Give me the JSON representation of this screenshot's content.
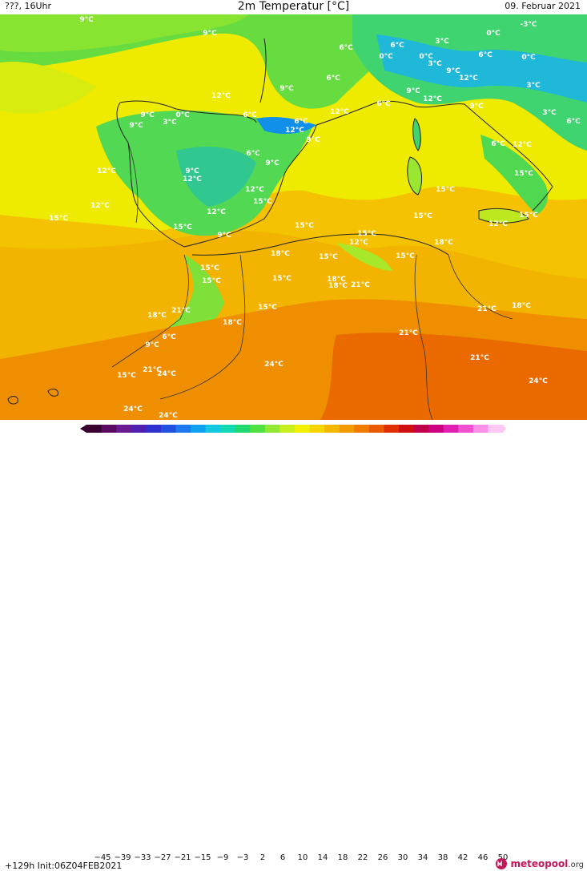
{
  "header": {
    "left": "???, 16Uhr",
    "title": "2m Temperatur [°C]",
    "right": "09. Februar 2021"
  },
  "footer": {
    "init": "+129h Init:06Z04FEB2021",
    "logo_main": "meteopool",
    "logo_suffix": ".org"
  },
  "colorbar": {
    "ticks": [
      "−45",
      "−39",
      "−33",
      "−27",
      "−21",
      "−15",
      "−9",
      "−3",
      "2",
      "6",
      "10",
      "14",
      "18",
      "22",
      "26",
      "30",
      "34",
      "38",
      "42",
      "46",
      "50"
    ],
    "colors": [
      "#3a0030",
      "#5a0a60",
      "#6a1a90",
      "#5020b0",
      "#3030d0",
      "#2050e0",
      "#1e78f0",
      "#10a0f0",
      "#10c8e0",
      "#10d8b0",
      "#20d870",
      "#50e040",
      "#90e830",
      "#c8ee20",
      "#f0f000",
      "#f6d400",
      "#f4b800",
      "#f29a00",
      "#ef7c00",
      "#ea5a00",
      "#e03000",
      "#d01010",
      "#c0004a",
      "#cc0080",
      "#e020b0",
      "#f050d0",
      "#fa90e8",
      "#ffc8f4"
    ]
  },
  "temperature_labels": [
    {
      "text": "9°C"
    },
    {
      "text": "9°C"
    },
    {
      "text": "6°C"
    },
    {
      "text": "3°C"
    },
    {
      "text": "0°C"
    },
    {
      "text": "-3°C"
    },
    {
      "text": "6°C"
    },
    {
      "text": "0°C"
    },
    {
      "text": "0°C"
    },
    {
      "text": "3°C"
    },
    {
      "text": "6°C"
    },
    {
      "text": "0°C"
    },
    {
      "text": "6°C"
    },
    {
      "text": "9°C"
    },
    {
      "text": "12°C"
    },
    {
      "text": "9°C"
    },
    {
      "text": "12°C"
    },
    {
      "text": "3°C"
    },
    {
      "text": "12°C"
    },
    {
      "text": "6°C"
    },
    {
      "text": "9°C"
    },
    {
      "text": "9°C"
    },
    {
      "text": "3°C"
    },
    {
      "text": "6°C"
    },
    {
      "text": "9°C"
    },
    {
      "text": "3°C"
    },
    {
      "text": "0°C"
    },
    {
      "text": "12°C"
    },
    {
      "text": "6°C"
    },
    {
      "text": "9°C"
    },
    {
      "text": "6°C"
    },
    {
      "text": "12°C"
    },
    {
      "text": "9°C"
    },
    {
      "text": "6°C"
    },
    {
      "text": "12°C"
    },
    {
      "text": "6°C"
    },
    {
      "text": "9°C"
    },
    {
      "text": "12°C"
    },
    {
      "text": "9°C"
    },
    {
      "text": "12°C"
    },
    {
      "text": "12°C"
    },
    {
      "text": "15°C"
    },
    {
      "text": "15°C"
    },
    {
      "text": "12°C"
    },
    {
      "text": "15°C"
    },
    {
      "text": "15°C"
    },
    {
      "text": "12°C"
    },
    {
      "text": "15°C"
    },
    {
      "text": "9°C"
    },
    {
      "text": "15°C"
    },
    {
      "text": "15°C"
    },
    {
      "text": "15°C"
    },
    {
      "text": "12°C"
    },
    {
      "text": "15°C"
    },
    {
      "text": "18°C"
    },
    {
      "text": "18°C"
    },
    {
      "text": "15°C"
    },
    {
      "text": "15°C"
    },
    {
      "text": "15°C"
    },
    {
      "text": "12°C"
    },
    {
      "text": "15°C"
    },
    {
      "text": "18°C"
    },
    {
      "text": "21°C"
    },
    {
      "text": "15°C"
    },
    {
      "text": "18°C"
    },
    {
      "text": "15°C"
    },
    {
      "text": "18°C"
    },
    {
      "text": "21°C"
    },
    {
      "text": "18°C"
    },
    {
      "text": "21°C"
    },
    {
      "text": "9°C"
    },
    {
      "text": "6°C"
    },
    {
      "text": "18°C"
    },
    {
      "text": "21°C"
    },
    {
      "text": "21°C"
    },
    {
      "text": "24°C"
    },
    {
      "text": "15°C"
    },
    {
      "text": "21°C"
    },
    {
      "text": "24°C"
    },
    {
      "text": "24°C"
    },
    {
      "text": "24°C"
    },
    {
      "text": "24°C"
    }
  ]
}
